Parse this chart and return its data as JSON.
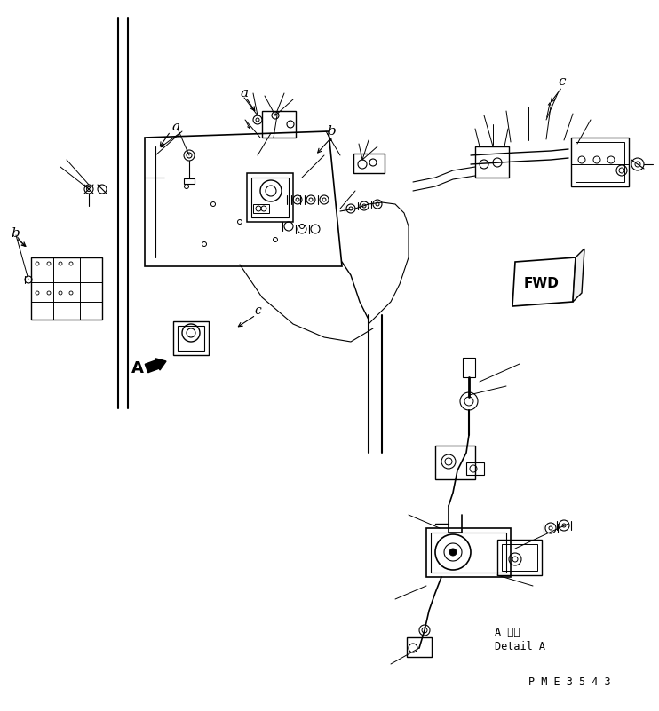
{
  "background_color": "#ffffff",
  "line_color": "#000000",
  "fig_width": 7.42,
  "fig_height": 8.01,
  "dpi": 100,
  "bottom_text_1": "A 詳細",
  "bottom_text_2": "Detail A",
  "part_number": "P M E 3 5 4 3",
  "label_a_1": "a",
  "label_a_2": "a",
  "label_b": "b",
  "label_b2": "b",
  "label_c": "c",
  "label_c2": "c",
  "label_A": "A",
  "fwd_text": "FWD"
}
